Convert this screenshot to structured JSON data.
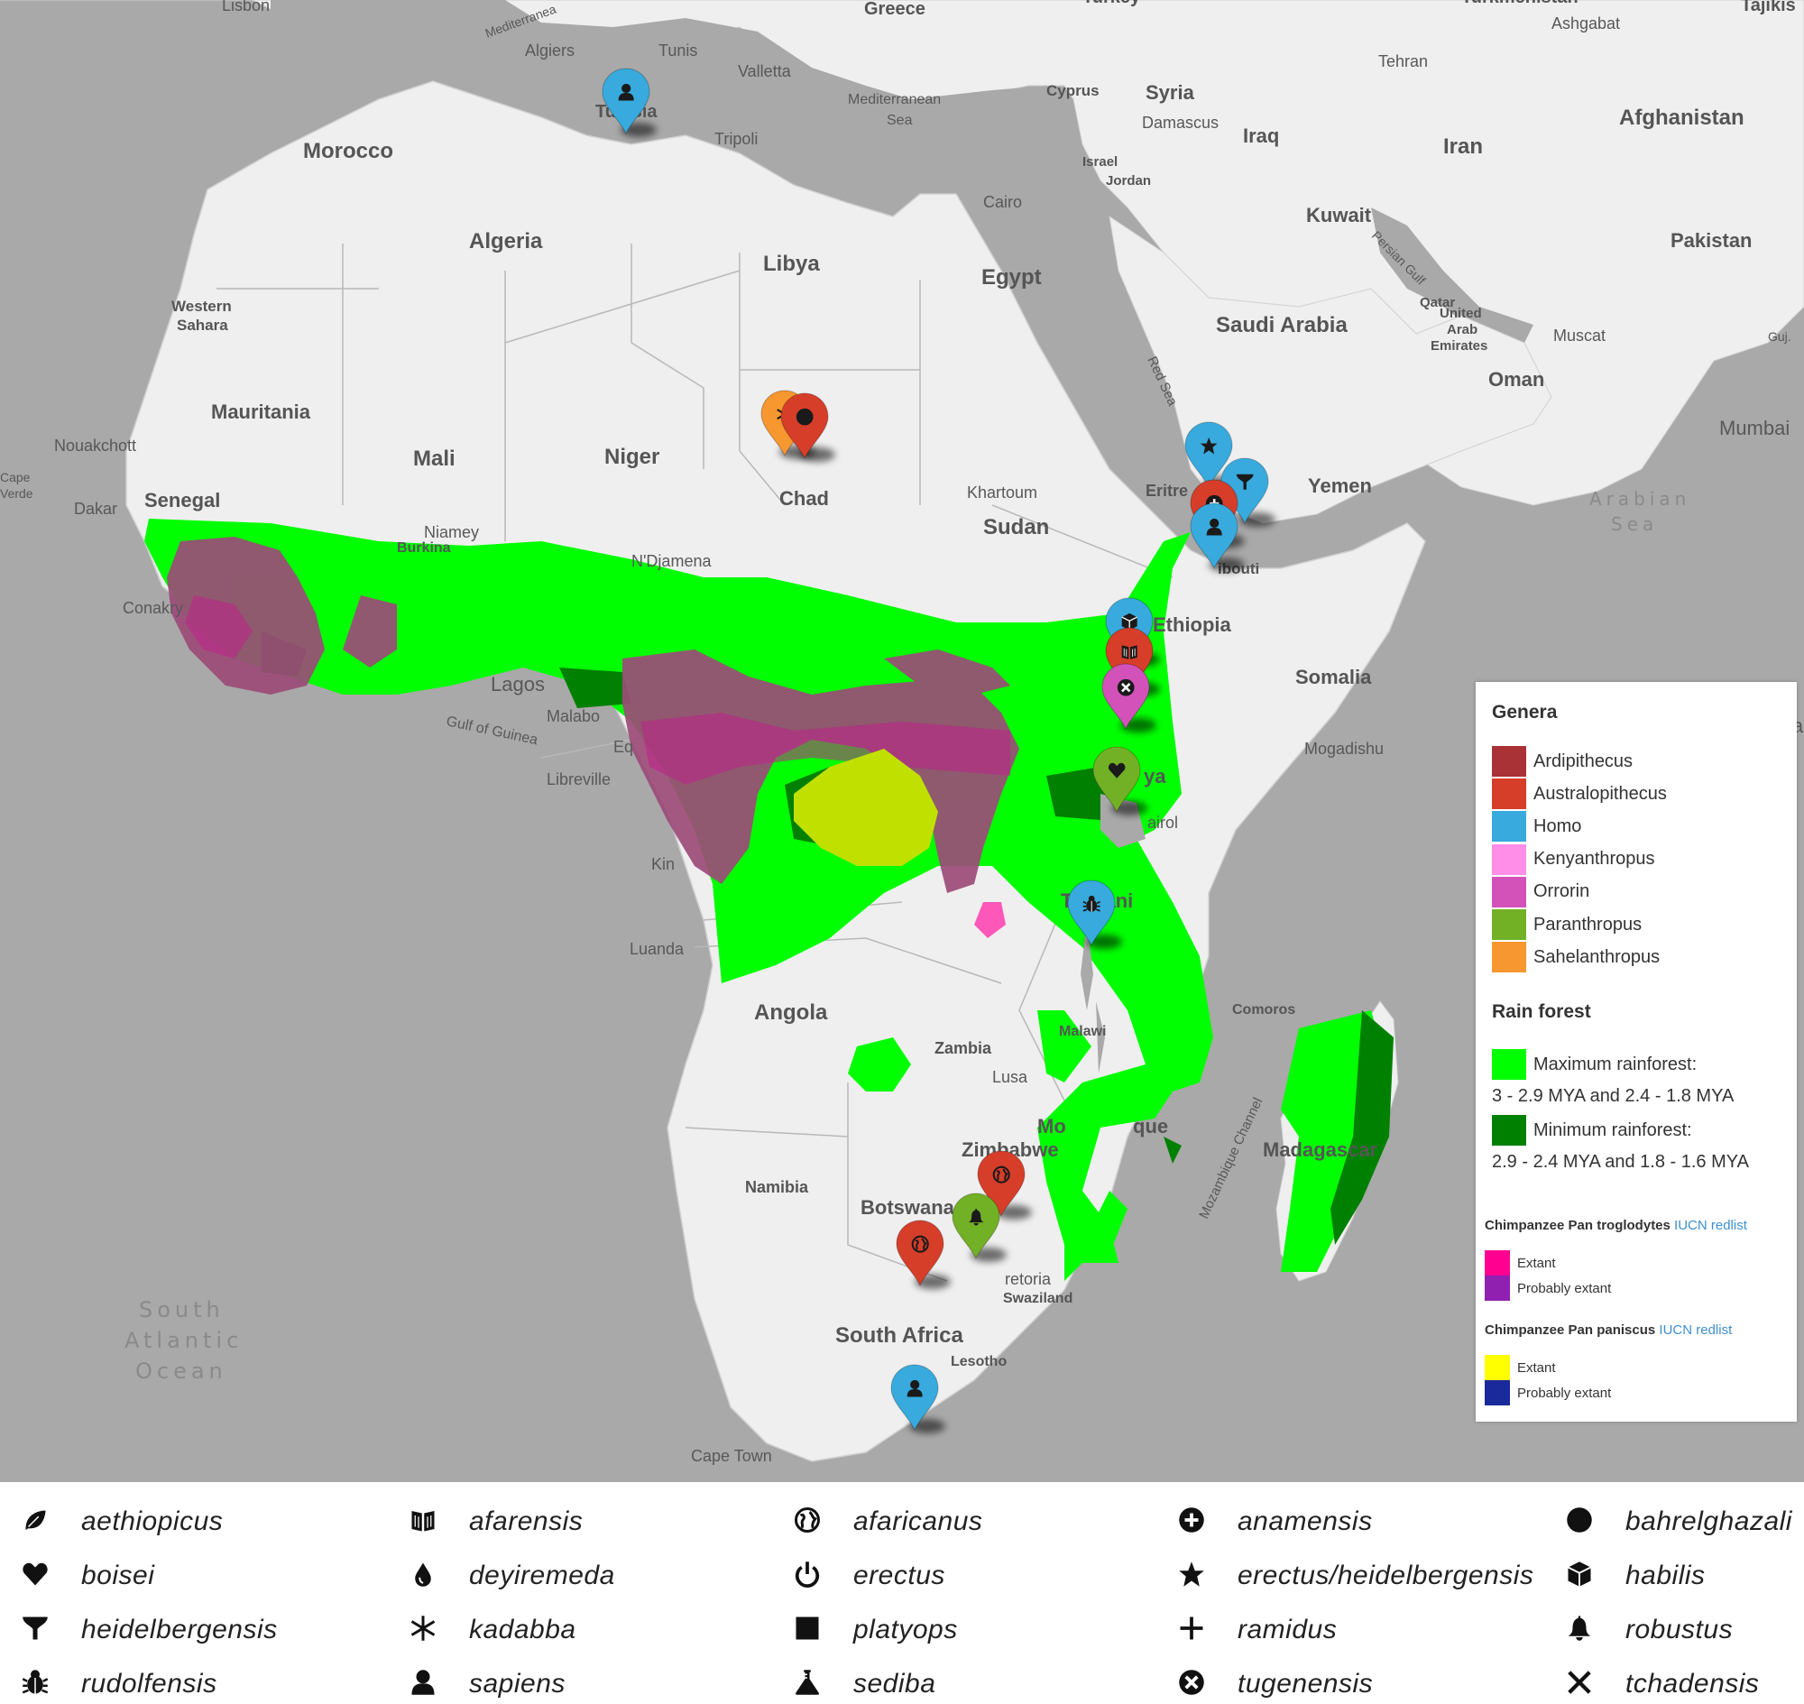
{
  "map": {
    "places": {
      "lisbon": "Lisbon",
      "greece": "Greece",
      "turkey": "Turkey",
      "turkmenistan": "Turkmenistan",
      "tajikistan": "Tajikis",
      "ashgabat": "Ashgabat",
      "algiers": "Algiers",
      "tunis": "Tunis",
      "valletta": "Valletta",
      "mediterranean_top": "Mediterranea",
      "tunisia": "Tunisia",
      "tripoli": "Tripoli",
      "mediterranean_sea_1": "Mediterranean",
      "mediterranean_sea_2": "Sea",
      "cyprus": "Cyprus",
      "syria": "Syria",
      "damascus": "Damascus",
      "tehran": "Tehran",
      "iraq": "Iraq",
      "israel": "Israel",
      "jordan": "Jordan",
      "iran": "Iran",
      "afghanistan": "Afghanistan",
      "morocco": "Morocco",
      "cairo": "Cairo",
      "kuwait": "Kuwait",
      "persian_gulf": "Persian Gulf",
      "algeria": "Algeria",
      "libya": "Libya",
      "egypt": "Egypt",
      "pakistan": "Pakistan",
      "qatar": "Qatar",
      "uae_1": "United",
      "uae_2": "Arab",
      "uae_3": "Emirates",
      "saudi_arabia": "Saudi Arabia",
      "western_sahara_1": "Western",
      "western_sahara_2": "Sahara",
      "muscat": "Muscat",
      "guj": "Guj.",
      "red_sea": "Red Sea",
      "oman": "Oman",
      "mauritania": "Mauritania",
      "mumbai": "Mumbai",
      "nouakchott": "Nouakchott",
      "mali": "Mali",
      "niger": "Niger",
      "chad": "Chad",
      "yemen": "Yemen",
      "arabian_sea_1": "Arabian",
      "arabian_sea_2": "Sea",
      "cape_verde_1": "Cape",
      "cape_verde_2": "Verde",
      "dakar": "Dakar",
      "senegal": "Senegal",
      "khartoum": "Khartoum",
      "eritrea": "Eritre",
      "sudan": "Sudan",
      "niamey": "Niamey",
      "burkina": "Burkina",
      "ndjamena": "N'Djamena",
      "djibouti": "ibouti",
      "conakry": "Conakry",
      "ethiopia": "Ethiopia",
      "lagos": "Lagos",
      "somalia": "Somalia",
      "malabo": "Malabo",
      "gulf_of_guinea": "Gulf of Guinea",
      "eq": "Eq",
      "mogadishu": "Mogadishu",
      "libreville": "Libreville",
      "kenya": "ya",
      "nairobi": "airol",
      "kin": "Kin",
      "tanzania": "Tanzani",
      "luanda": "Luanda",
      "angola": "Angola",
      "comoros": "Comoros",
      "malawi": "Malawi",
      "zambia": "Zambia",
      "lusaka": "Lusa",
      "mozambique_channel": "Mozambique Channel",
      "mozambique_1": "Mo",
      "mozambique_2": "que",
      "zimbabwe": "Zimbabwe",
      "madagascar": "Madagascar",
      "namibia": "Namibia",
      "botswana": "Botswana",
      "pretoria": "retoria",
      "swaziland": "Swaziland",
      "south_africa": "South Africa",
      "lesotho": "Lesotho",
      "south_atlantic_1": "South",
      "south_atlantic_2": "Atlantic",
      "south_atlantic_3": "Ocean",
      "cape_town": "Cape Town",
      "ia_edge": "ia"
    }
  },
  "legend": {
    "genera_title": "Genera",
    "genera": [
      {
        "label": "Ardipithecus",
        "color": "#a83236"
      },
      {
        "label": "Australopithecus",
        "color": "#d63e2a"
      },
      {
        "label": "Homo",
        "color": "#38aadd"
      },
      {
        "label": "Kenyanthropus",
        "color": "#ff8ee9"
      },
      {
        "label": "Orrorin",
        "color": "#d252b9"
      },
      {
        "label": "Paranthropus",
        "color": "#72b026"
      },
      {
        "label": "Sahelanthropus",
        "color": "#f69730"
      }
    ],
    "rainforest_title": "Rain forest",
    "rainforest": [
      {
        "label": "Maximum rainforest:",
        "detail": "3 - 2.9 MYA and 2.4 - 1.8 MYA",
        "color": "#00ff00"
      },
      {
        "label": "Minimum rainforest:",
        "detail": "2.9 - 2.4 MYA and 1.8 - 1.6 MYA",
        "color": "#008000"
      }
    ],
    "chimp1_title": "Chimpanzee Pan troglodytes",
    "chimp1_link": "IUCN redlist",
    "chimp1_items": [
      {
        "label": "Extant",
        "color": "#ff0090"
      },
      {
        "label": "Probably extant",
        "color": "#9020b0"
      }
    ],
    "chimp2_title": "Chimpanzee Pan paniscus",
    "chimp2_link": "IUCN redlist",
    "chimp2_items": [
      {
        "label": "Extant",
        "color": "#ffff00"
      },
      {
        "label": "Probably extant",
        "color": "#1a2a9a"
      }
    ]
  },
  "species": [
    {
      "label": "aethiopicus",
      "icon": "leaf-icon"
    },
    {
      "label": "afarensis",
      "icon": "book-icon"
    },
    {
      "label": "afaricanus",
      "icon": "globe-icon"
    },
    {
      "label": "anamensis",
      "icon": "plus-circle-icon"
    },
    {
      "label": "bahrelghazali",
      "icon": "circle-icon"
    },
    {
      "label": "boisei",
      "icon": "heart-icon"
    },
    {
      "label": "deyiremeda",
      "icon": "tint-icon"
    },
    {
      "label": "erectus",
      "icon": "power-icon"
    },
    {
      "label": "erectus/heidelbergensis",
      "icon": "star-icon"
    },
    {
      "label": "habilis",
      "icon": "cube-icon"
    },
    {
      "label": "heidelbergensis",
      "icon": "filter-icon"
    },
    {
      "label": "kadabba",
      "icon": "asterisk-icon"
    },
    {
      "label": "platyops",
      "icon": "square-icon"
    },
    {
      "label": "ramidus",
      "icon": "plus-icon"
    },
    {
      "label": "robustus",
      "icon": "bell-icon"
    },
    {
      "label": "rudolfensis",
      "icon": "bug-icon"
    },
    {
      "label": "sapiens",
      "icon": "user-icon"
    },
    {
      "label": "sediba",
      "icon": "flask-icon"
    },
    {
      "label": "tugenensis",
      "icon": "times-circle-icon"
    },
    {
      "label": "tchadensis",
      "icon": "times-icon"
    }
  ],
  "markers": [
    {
      "genus": "Homo",
      "icon": "user-icon",
      "color": "#38aadd"
    },
    {
      "genus": "Sahelanthropus",
      "icon": "asterisk-icon",
      "color": "#f69730"
    },
    {
      "genus": "Australopithecus",
      "icon": "circle-icon",
      "color": "#d63e2a"
    },
    {
      "genus": "Homo",
      "icon": "star-icon",
      "color": "#38aadd"
    },
    {
      "genus": "Homo",
      "icon": "filter-icon",
      "color": "#38aadd"
    },
    {
      "genus": "Australopithecus",
      "icon": "plus-circle-icon",
      "color": "#d63e2a"
    },
    {
      "genus": "Homo",
      "icon": "user-icon",
      "color": "#38aadd"
    },
    {
      "genus": "Homo",
      "icon": "cube-icon",
      "color": "#38aadd"
    },
    {
      "genus": "Australopithecus",
      "icon": "book-icon",
      "color": "#d63e2a"
    },
    {
      "genus": "Orrorin",
      "icon": "times-circle-icon",
      "color": "#d252b9"
    },
    {
      "genus": "Paranthropus",
      "icon": "heart-icon",
      "color": "#72b026"
    },
    {
      "genus": "Homo",
      "icon": "bug-icon",
      "color": "#38aadd"
    },
    {
      "genus": "Australopithecus",
      "icon": "globe-icon",
      "color": "#d63e2a"
    },
    {
      "genus": "Paranthropus",
      "icon": "bell-icon",
      "color": "#72b026"
    },
    {
      "genus": "Australopithecus",
      "icon": "globe-icon",
      "color": "#d63e2a"
    },
    {
      "genus": "Homo",
      "icon": "user-icon",
      "color": "#38aadd"
    }
  ]
}
